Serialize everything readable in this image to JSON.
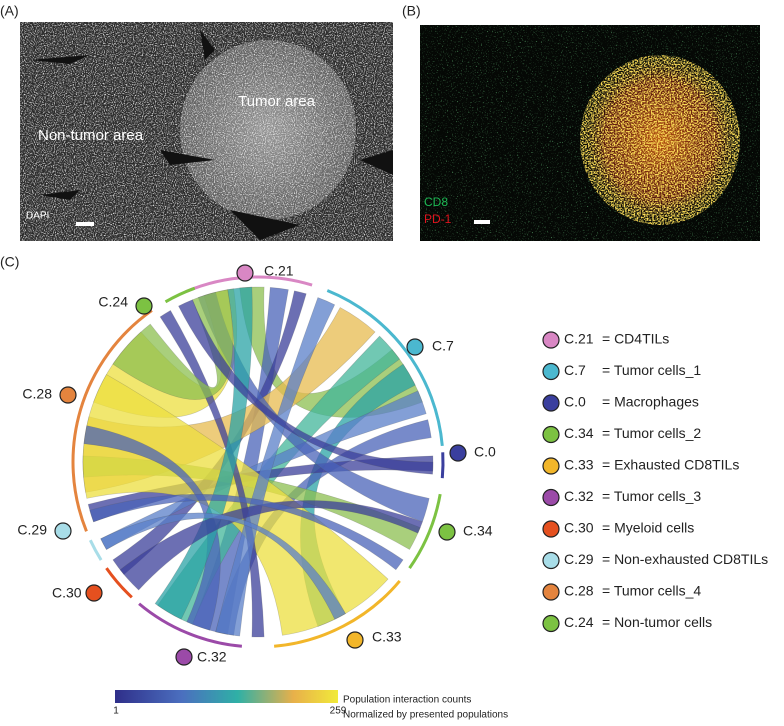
{
  "panels": {
    "a": {
      "label": "(A)",
      "annotations": {
        "tumor": "Tumor area",
        "non_tumor": "Non-tumor area",
        "stain": "DAPI"
      }
    },
    "b": {
      "label": "(B)",
      "channels": [
        {
          "name": "CD8",
          "color": "#1db954"
        },
        {
          "name": "PD-1",
          "color": "#e0141e"
        }
      ]
    },
    "c": {
      "label": "(C)",
      "clusters": [
        {
          "id": "C.21",
          "desc": "= CD4TILs",
          "color": "#d987c4"
        },
        {
          "id": "C.7",
          "desc": "= Tumor cells_1",
          "color": "#4bb8cf"
        },
        {
          "id": "C.0",
          "desc": "= Macrophages",
          "color": "#3a3f9e"
        },
        {
          "id": "C.34",
          "desc": "= Tumor cells_2",
          "color": "#7cc242"
        },
        {
          "id": "C.33",
          "desc": "= Exhausted CD8TILs",
          "color": "#f2b62a"
        },
        {
          "id": "C.32",
          "desc": "= Tumor cells_3",
          "color": "#9b4aa8"
        },
        {
          "id": "C.30",
          "desc": "= Myeloid cells",
          "color": "#e5501f"
        },
        {
          "id": "C.29",
          "desc": "= Non-exhausted CD8TILs",
          "color": "#a8dde8"
        },
        {
          "id": "C.28",
          "desc": "= Tumor cells_4",
          "color": "#e4843e"
        },
        {
          "id": "C.24",
          "desc": "= Non-tumor cells",
          "color": "#7cc242"
        }
      ],
      "colorbar": {
        "min": 1,
        "max": 259,
        "caption": [
          "Population interaction counts",
          "Normalized by presented populations"
        ]
      }
    }
  }
}
